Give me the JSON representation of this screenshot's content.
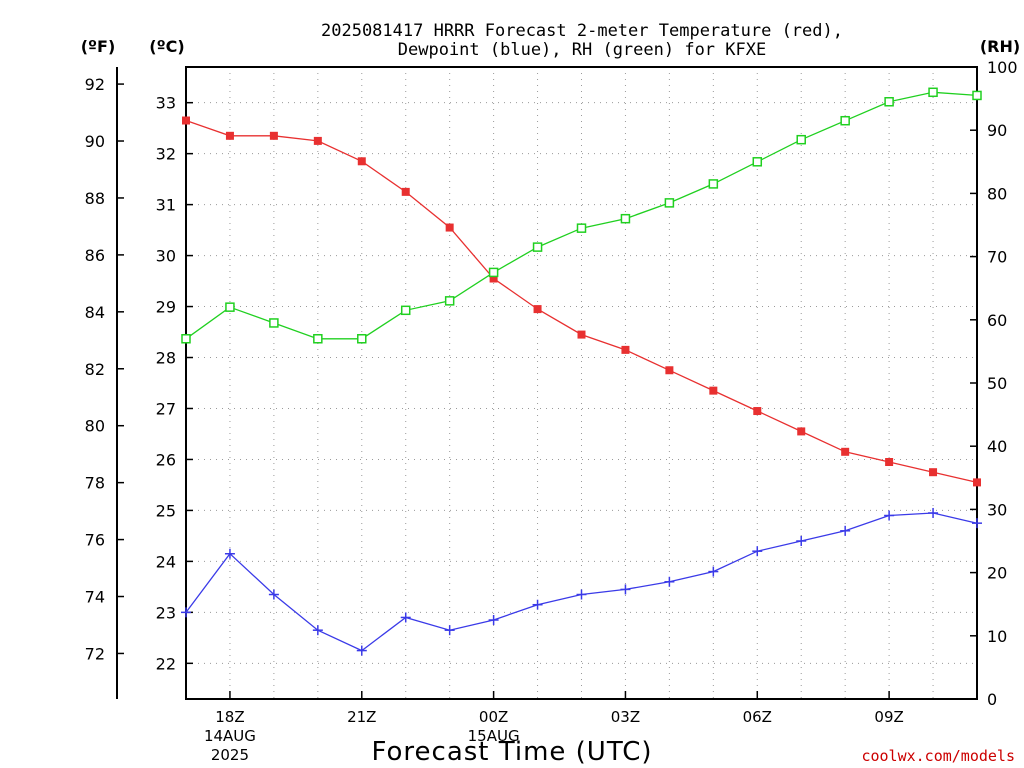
{
  "title": [
    "2025081417 HRRR Forecast 2-meter Temperature (red),",
    "Dewpoint (blue), RH (green) for KFXE"
  ],
  "unit_labels": {
    "fahrenheit": "(ºF)",
    "celsius": "(ºC)",
    "rh": "(RH)"
  },
  "xlabel": "Forecast Time (UTC)",
  "credit": "coolwx.com/models",
  "chart_data": {
    "type": "line",
    "x_hours": [
      17,
      18,
      19,
      20,
      21,
      22,
      23,
      24,
      25,
      26,
      27,
      28,
      29,
      30,
      31,
      32,
      33,
      34,
      35
    ],
    "x_ticks": [
      {
        "hour": 18,
        "lines": [
          "18Z",
          "14AUG",
          "2025"
        ]
      },
      {
        "hour": 21,
        "lines": [
          "21Z"
        ]
      },
      {
        "hour": 24,
        "lines": [
          "00Z",
          "15AUG"
        ]
      },
      {
        "hour": 27,
        "lines": [
          "03Z"
        ]
      },
      {
        "hour": 30,
        "lines": [
          "06Z"
        ]
      },
      {
        "hour": 33,
        "lines": [
          "09Z"
        ]
      }
    ],
    "xlim": [
      17,
      35
    ],
    "celsius_axis": {
      "range": [
        21.3,
        33.7
      ],
      "ticks": [
        22,
        23,
        24,
        25,
        26,
        27,
        28,
        29,
        30,
        31,
        32,
        33
      ]
    },
    "fahrenheit_axis": {
      "range": [
        70.4,
        92.6
      ],
      "ticks": [
        72,
        74,
        76,
        78,
        80,
        82,
        84,
        86,
        88,
        90,
        92
      ]
    },
    "rh_axis": {
      "range": [
        0,
        100
      ],
      "ticks": [
        0,
        10,
        20,
        30,
        40,
        50,
        60,
        70,
        80,
        90,
        100
      ]
    },
    "grid": true,
    "series": [
      {
        "name": "Temperature",
        "axis": "celsius",
        "color": "#e83030",
        "marker": "filled-square",
        "values": [
          32.65,
          32.35,
          32.35,
          32.25,
          31.85,
          31.25,
          30.55,
          29.55,
          28.95,
          28.45,
          28.15,
          27.75,
          27.35,
          26.95,
          26.55,
          26.15,
          25.95,
          25.75,
          25.55
        ]
      },
      {
        "name": "Dewpoint",
        "axis": "celsius",
        "color": "#3a3ae8",
        "marker": "plus",
        "values": [
          23.0,
          24.15,
          23.35,
          22.65,
          22.25,
          22.9,
          22.65,
          22.85,
          23.15,
          23.35,
          23.45,
          23.6,
          23.8,
          24.2,
          24.4,
          24.6,
          24.9,
          24.95,
          24.75
        ]
      },
      {
        "name": "RH",
        "axis": "rh",
        "color": "#20d020",
        "marker": "open-square",
        "values": [
          57,
          62,
          59.5,
          57,
          57,
          61.5,
          63,
          67.5,
          71.5,
          74.5,
          76,
          78.5,
          81.5,
          85,
          88.5,
          91.5,
          94.5,
          96,
          95.5
        ]
      }
    ]
  }
}
